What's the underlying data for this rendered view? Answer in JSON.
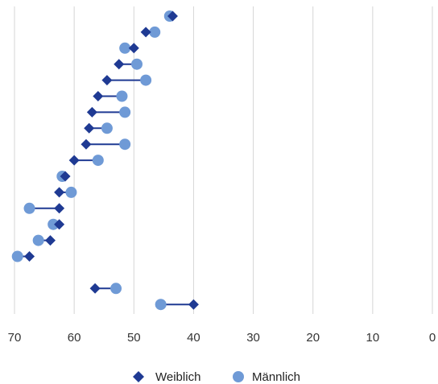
{
  "chart_data": {
    "type": "dumbbell",
    "xlim": [
      70,
      0
    ],
    "x_ticks": [
      "70",
      "60",
      "50",
      "40",
      "30",
      "20",
      "10",
      "0"
    ],
    "grid": true,
    "legend_position": "bottom",
    "series": [
      {
        "name": "Weiblich",
        "color": "#1f3a93",
        "marker": "diamond",
        "values": [
          43.5,
          48.0,
          50.0,
          52.5,
          54.5,
          56.0,
          57.0,
          57.5,
          58.0,
          60.0,
          61.5,
          62.5,
          62.5,
          62.5,
          64.0,
          67.5,
          null,
          56.5,
          40.0
        ]
      },
      {
        "name": "Männlich",
        "color": "#6f9ad6",
        "marker": "circle",
        "values": [
          44.0,
          46.5,
          51.5,
          49.5,
          48.0,
          52.0,
          51.5,
          54.5,
          51.5,
          56.0,
          62.0,
          60.5,
          67.5,
          63.5,
          66.0,
          69.5,
          null,
          53.0,
          45.5
        ]
      }
    ]
  },
  "legend": {
    "items": [
      {
        "label": "Weiblich",
        "icon": "diamond-marker-icon"
      },
      {
        "label": "Männlich",
        "icon": "circle-marker-icon"
      }
    ]
  }
}
